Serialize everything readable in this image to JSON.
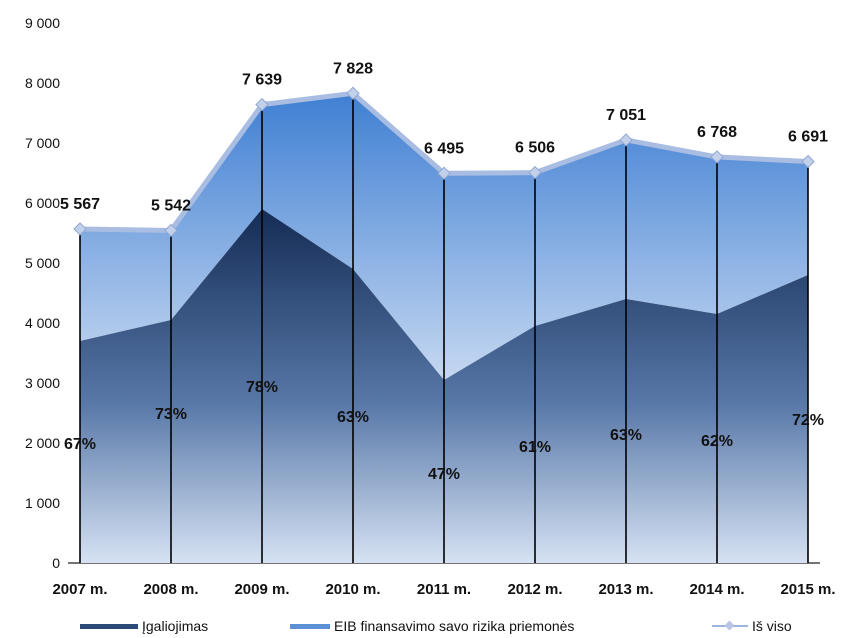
{
  "chart_data": {
    "type": "area",
    "categories": [
      "2007 m.",
      "2008 m.",
      "2009 m.",
      "2010 m.",
      "2011 m.",
      "2012 m.",
      "2013 m.",
      "2014 m.",
      "2015 m."
    ],
    "series": [
      {
        "name": "Įgaliojimas",
        "kind": "area",
        "values": [
          3700,
          4050,
          5900,
          4900,
          3050,
          3950,
          4400,
          4150,
          4800
        ],
        "color": "#2b4a78"
      },
      {
        "name": "EIB finansavimo savo rizika priemonės",
        "kind": "area",
        "values": [
          1867,
          1492,
          1739,
          2928,
          3445,
          2556,
          2651,
          2618,
          1891
        ],
        "color": "#5b8fd6"
      },
      {
        "name": "Iš viso",
        "kind": "line",
        "values": [
          5567,
          5542,
          7639,
          7828,
          6495,
          6506,
          7051,
          6768,
          6691
        ],
        "color": "#a9bde2"
      }
    ],
    "total_labels": [
      "5 567",
      "5 542",
      "7 639",
      "7 828",
      "6 495",
      "6 506",
      "7 051",
      "6 768",
      "6 691"
    ],
    "percent_labels": [
      {
        "text": "67%",
        "y": 2000
      },
      {
        "text": "73%",
        "y": 2500
      },
      {
        "text": "78%",
        "y": 2950
      },
      {
        "text": "63%",
        "y": 2450
      },
      {
        "text": "47%",
        "y": 1500
      },
      {
        "text": "61%",
        "y": 1950
      },
      {
        "text": "63%",
        "y": 2150
      },
      {
        "text": "62%",
        "y": 2050
      },
      {
        "text": "72%",
        "y": 2400
      }
    ],
    "y_ticks": [
      "0",
      "1 000",
      "2 000",
      "3 000",
      "4 000",
      "5 000",
      "6 000",
      "7 000",
      "8 000",
      "9 000"
    ],
    "ylim": [
      0,
      9000
    ],
    "ystep": 1000,
    "legend_position": "bottom"
  }
}
